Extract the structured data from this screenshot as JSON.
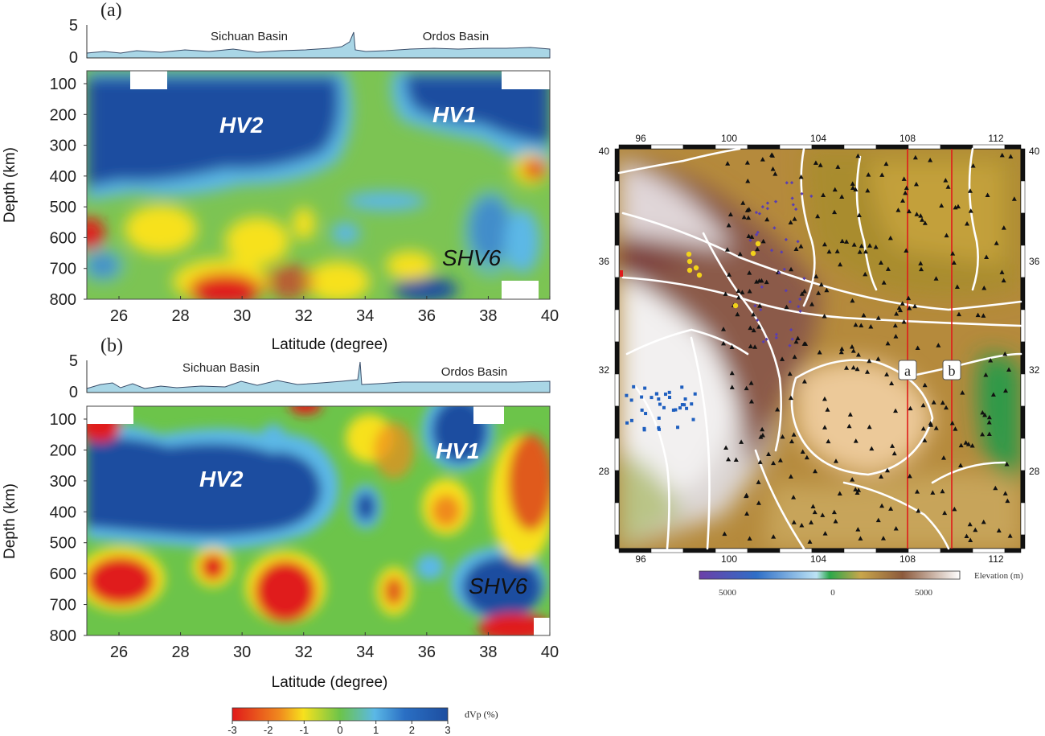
{
  "panels": [
    {
      "id": "a",
      "label": "(a)",
      "topo_labels": [
        "Sichuan Basin",
        "Ordos Basin"
      ],
      "topo_ticks": [
        "5",
        "0"
      ],
      "depth_ticks": [
        "100",
        "200",
        "300",
        "400",
        "500",
        "600",
        "700",
        "800"
      ],
      "lat_ticks": [
        "26",
        "28",
        "30",
        "32",
        "34",
        "36",
        "38",
        "40"
      ],
      "ylabel": "Depth (km)",
      "xlabel": "Latitude (degree)",
      "anomalies": [
        "HV2",
        "HV1",
        "SHV6"
      ]
    },
    {
      "id": "b",
      "label": "(b)",
      "topo_labels": [
        "Sichuan Basin",
        "Ordos Basin"
      ],
      "topo_ticks": [
        "5",
        "0"
      ],
      "depth_ticks": [
        "100",
        "200",
        "300",
        "400",
        "500",
        "600",
        "700",
        "800"
      ],
      "lat_ticks": [
        "26",
        "28",
        "30",
        "32",
        "34",
        "36",
        "38",
        "40"
      ],
      "ylabel": "Depth (km)",
      "xlabel": "Latitude (degree)",
      "anomalies": [
        "HV2",
        "HV1",
        "SHV6"
      ]
    }
  ],
  "dvp_colorbar": {
    "label": "dVp (%)",
    "ticks": [
      "-3",
      "-2",
      "-1",
      "0",
      "1",
      "2",
      "3"
    ],
    "colors": [
      "#e01a1a",
      "#f7e11d",
      "#6cc44a",
      "#5bb8e6",
      "#1d4ea0"
    ]
  },
  "map": {
    "lon_ticks": [
      "96",
      "100",
      "104",
      "108",
      "112"
    ],
    "lat_ticks": [
      "40",
      "36",
      "32",
      "28"
    ],
    "profiles": [
      "a",
      "b"
    ],
    "elevation_bar": {
      "label": "Elevation (m)",
      "ticks": [
        "5000",
        "0",
        "5000"
      ]
    }
  }
}
